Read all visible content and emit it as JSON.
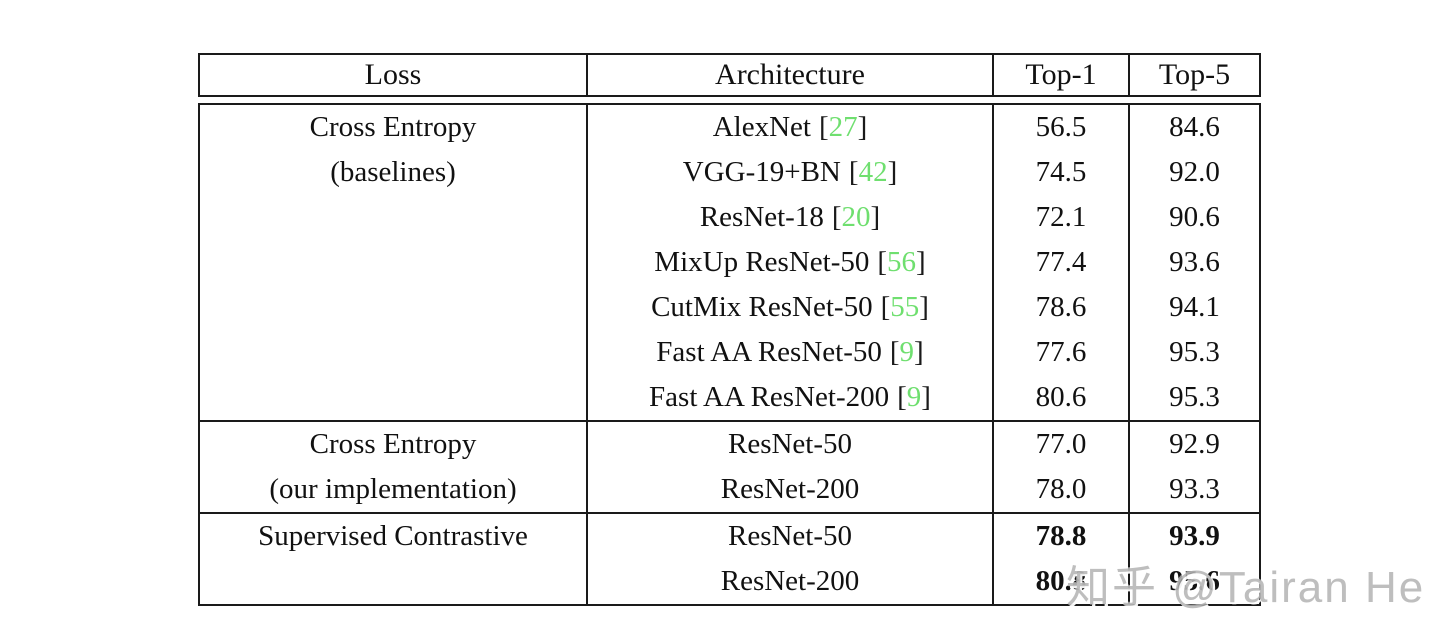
{
  "table": {
    "headers": {
      "loss": "Loss",
      "architecture": "Architecture",
      "top1": "Top-1",
      "top5": "Top-5"
    },
    "sections": [
      {
        "loss_line1": "Cross Entropy",
        "loss_line2": "(baselines)",
        "rows": [
          {
            "arch": "AlexNet",
            "cite": "27",
            "top1": "56.5",
            "top5": "84.6"
          },
          {
            "arch": "VGG-19+BN",
            "cite": "42",
            "top1": "74.5",
            "top5": "92.0"
          },
          {
            "arch": "ResNet-18",
            "cite": "20",
            "top1": "72.1",
            "top5": "90.6"
          },
          {
            "arch": "MixUp ResNet-50",
            "cite": "56",
            "top1": "77.4",
            "top5": "93.6"
          },
          {
            "arch": "CutMix ResNet-50",
            "cite": "55",
            "top1": "78.6",
            "top5": "94.1"
          },
          {
            "arch": "Fast AA ResNet-50",
            "cite": "9",
            "top1": "77.6",
            "top5": "95.3"
          },
          {
            "arch": "Fast AA ResNet-200",
            "cite": "9",
            "top1": "80.6",
            "top5": "95.3"
          }
        ]
      },
      {
        "loss_line1": "Cross Entropy",
        "loss_line2": "(our implementation)",
        "rows": [
          {
            "arch": "ResNet-50",
            "top1": "77.0",
            "top5": "92.9"
          },
          {
            "arch": "ResNet-200",
            "top1": "78.0",
            "top5": "93.3"
          }
        ]
      },
      {
        "loss_line1": "Supervised Contrastive",
        "rows": [
          {
            "arch": "ResNet-50",
            "top1": "78.8",
            "top5": "93.9"
          },
          {
            "arch": "ResNet-200",
            "top1": "80.8",
            "top5": "95.6"
          }
        ]
      }
    ]
  },
  "watermark": {
    "text": "知乎 @Tairan He"
  },
  "colors": {
    "citation_green": "#6fdf6f",
    "border": "#1a1a1a",
    "watermark_gray": "#b0b0b0",
    "background": "#ffffff"
  }
}
